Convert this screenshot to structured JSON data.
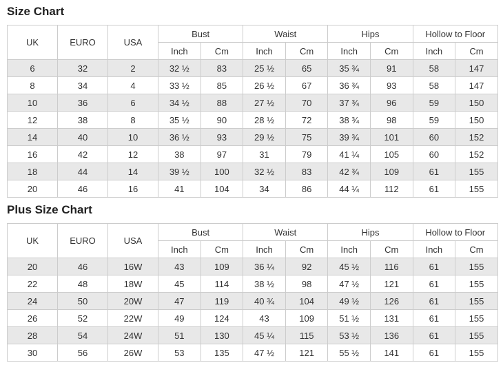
{
  "colors": {
    "stripe_row": "#e8e8e8",
    "border": "#cccccc",
    "text": "#333333",
    "title_text": "#222222",
    "background": "#ffffff"
  },
  "header": {
    "size_cols": [
      "UK",
      "EURO",
      "USA"
    ],
    "groups": [
      "Bust",
      "Waist",
      "Hips",
      "Hollow to Floor"
    ],
    "units": [
      "Inch",
      "Cm"
    ]
  },
  "size_chart": {
    "title": "Size Chart",
    "rows": [
      [
        "6",
        "32",
        "2",
        "32 ½",
        "83",
        "25 ½",
        "65",
        "35 ¾",
        "91",
        "58",
        "147"
      ],
      [
        "8",
        "34",
        "4",
        "33 ½",
        "85",
        "26 ½",
        "67",
        "36 ¾",
        "93",
        "58",
        "147"
      ],
      [
        "10",
        "36",
        "6",
        "34 ½",
        "88",
        "27 ½",
        "70",
        "37 ¾",
        "96",
        "59",
        "150"
      ],
      [
        "12",
        "38",
        "8",
        "35 ½",
        "90",
        "28 ½",
        "72",
        "38 ¾",
        "98",
        "59",
        "150"
      ],
      [
        "14",
        "40",
        "10",
        "36 ½",
        "93",
        "29 ½",
        "75",
        "39 ¾",
        "101",
        "60",
        "152"
      ],
      [
        "16",
        "42",
        "12",
        "38",
        "97",
        "31",
        "79",
        "41 ¼",
        "105",
        "60",
        "152"
      ],
      [
        "18",
        "44",
        "14",
        "39 ½",
        "100",
        "32 ½",
        "83",
        "42 ¾",
        "109",
        "61",
        "155"
      ],
      [
        "20",
        "46",
        "16",
        "41",
        "104",
        "34",
        "86",
        "44 ¼",
        "112",
        "61",
        "155"
      ]
    ]
  },
  "plus_size_chart": {
    "title": "Plus Size Chart",
    "rows": [
      [
        "20",
        "46",
        "16W",
        "43",
        "109",
        "36 ¼",
        "92",
        "45 ½",
        "116",
        "61",
        "155"
      ],
      [
        "22",
        "48",
        "18W",
        "45",
        "114",
        "38 ½",
        "98",
        "47 ½",
        "121",
        "61",
        "155"
      ],
      [
        "24",
        "50",
        "20W",
        "47",
        "119",
        "40 ¾",
        "104",
        "49 ½",
        "126",
        "61",
        "155"
      ],
      [
        "26",
        "52",
        "22W",
        "49",
        "124",
        "43",
        "109",
        "51 ½",
        "131",
        "61",
        "155"
      ],
      [
        "28",
        "54",
        "24W",
        "51",
        "130",
        "45 ¼",
        "115",
        "53 ½",
        "136",
        "61",
        "155"
      ],
      [
        "30",
        "56",
        "26W",
        "53",
        "135",
        "47 ½",
        "121",
        "55 ½",
        "141",
        "61",
        "155"
      ]
    ]
  }
}
